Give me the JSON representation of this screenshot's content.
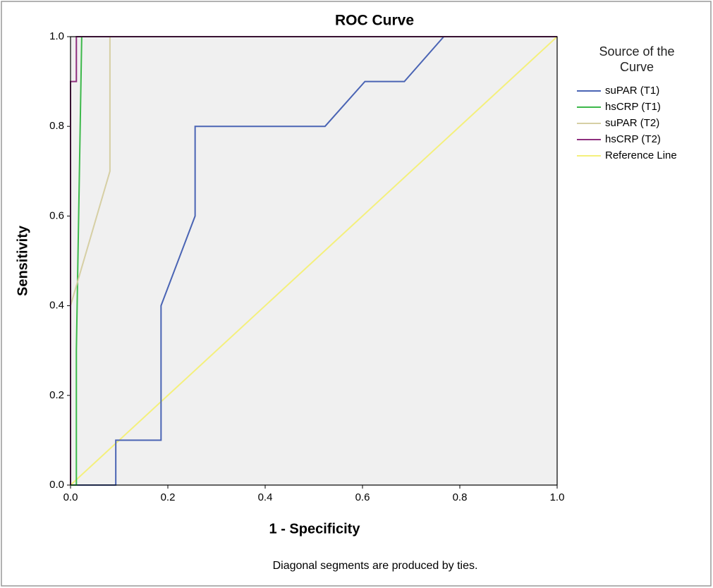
{
  "chart_data": {
    "type": "line",
    "title": "ROC Curve",
    "xlabel": "1 - Specificity",
    "ylabel": "Sensitivity",
    "legend_title": "Source of the Curve",
    "legend_position": "right",
    "footnote": "Diagonal segments are produced by ties.",
    "xlim": [
      0,
      1
    ],
    "ylim": [
      0,
      1
    ],
    "xticks": [
      {
        "value": 0,
        "label": "0.0"
      },
      0.2,
      0.4,
      0.6,
      0.8,
      {
        "value": 1,
        "label": "1.0"
      }
    ],
    "yticks": [
      {
        "value": 0,
        "label": "0.0"
      },
      0.2,
      0.4,
      0.6,
      0.8,
      {
        "value": 1,
        "label": "1.0"
      }
    ],
    "grid": false,
    "plot_background": "#f0f0f0",
    "series": [
      {
        "name": "suPAR (T1)",
        "color": "#4a64b4",
        "x": [
          0,
          0.093,
          0.093,
          0.186,
          0.186,
          0.256,
          0.256,
          0.523,
          0.605,
          0.686,
          0.767,
          1
        ],
        "values": [
          0,
          0,
          0.1,
          0.1,
          0.4,
          0.6,
          0.8,
          0.8,
          0.9,
          0.9,
          1,
          1
        ]
      },
      {
        "name": "hsCRP (T1)",
        "color": "#3cb84a",
        "x": [
          0,
          0.012,
          0.012,
          0.023,
          1
        ],
        "values": [
          0,
          0,
          0.3,
          1,
          1
        ]
      },
      {
        "name": "suPAR (T2)",
        "color": "#d6cfa4",
        "x": [
          0,
          0,
          0.081,
          0.081,
          1
        ],
        "values": [
          0,
          0.4,
          0.7,
          1,
          1
        ]
      },
      {
        "name": "hsCRP (T2)",
        "color": "#8e2f7e",
        "x": [
          0,
          0,
          0.012,
          0.012,
          1
        ],
        "values": [
          0,
          0.9,
          0.9,
          1,
          1
        ]
      },
      {
        "name": "Reference Line",
        "color": "#f4f07c",
        "x": [
          0,
          1
        ],
        "values": [
          0,
          1
        ]
      }
    ]
  }
}
